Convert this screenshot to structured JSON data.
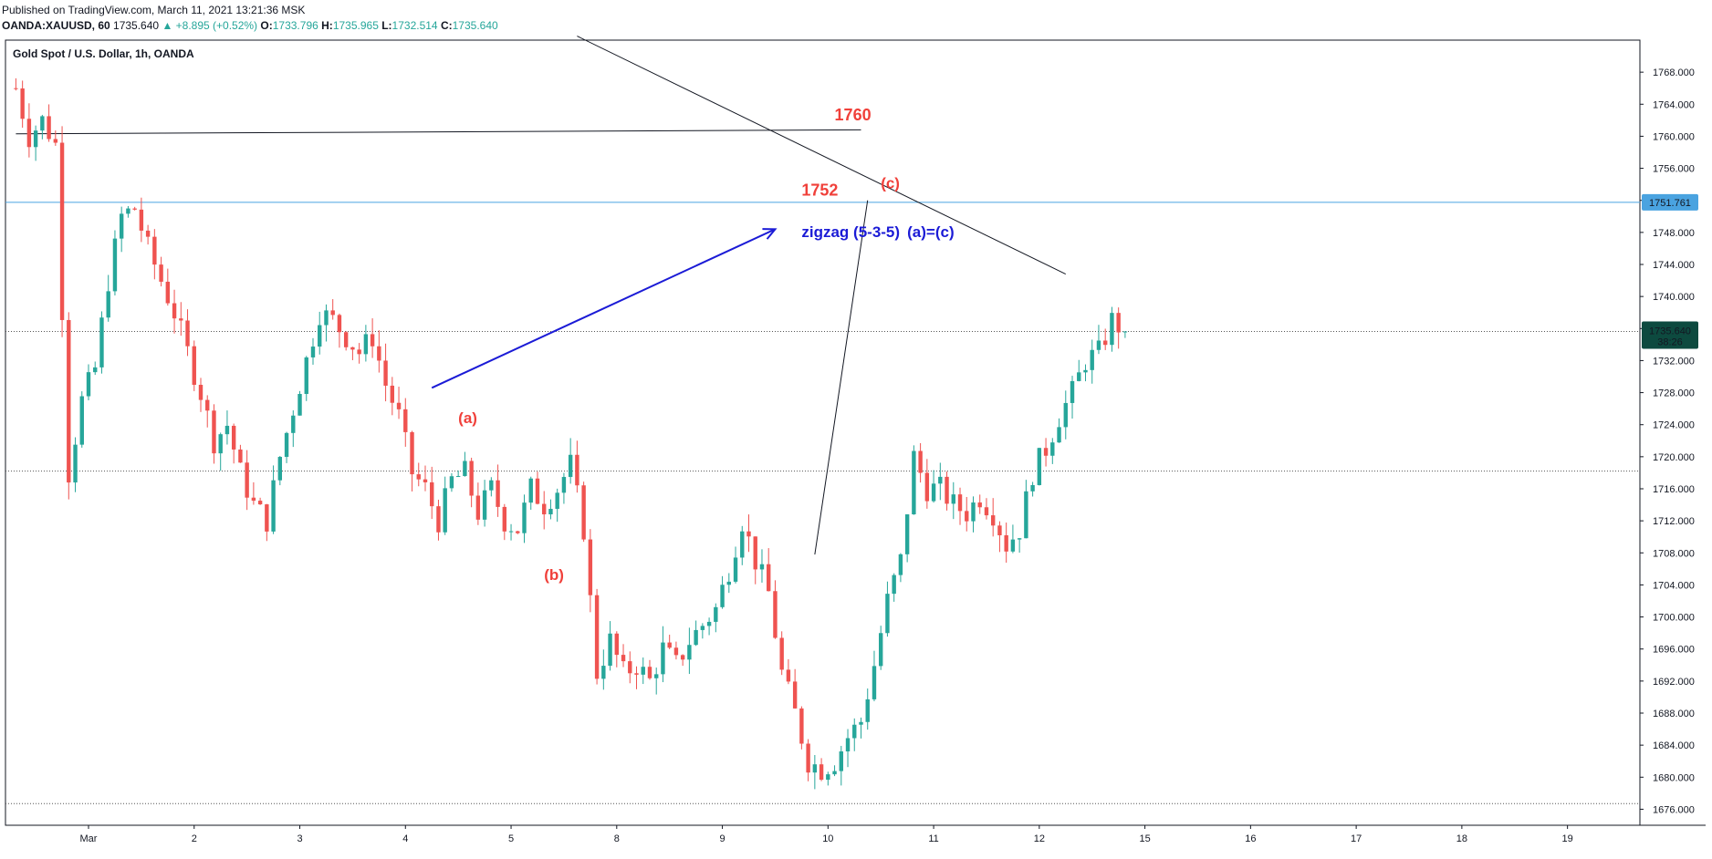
{
  "header": {
    "published": "Published on TradingView.com, March 11, 2021 13:21:36 MSK",
    "symbol": "OANDA:XAUUSD, 60",
    "last": "1735.640",
    "change": "▲ +8.895 (+0.52%)",
    "o_label": "O:",
    "o_value": "1733.796",
    "h_label": "H:",
    "h_value": "1735.965",
    "l_label": "L:",
    "l_value": "1732.514",
    "c_label": "C:",
    "c_value": "1735.640"
  },
  "legend": "Gold Spot / U.S. Dollar, 1h, OANDA",
  "colors": {
    "up": "#26a69a",
    "down": "#ef5350",
    "price_tag": "#0d4a3f",
    "level_line": "#4aa3e0",
    "annotation_red": "#f0403a",
    "annotation_blue": "#1b1bd6"
  },
  "chart_data": {
    "type": "candlestick",
    "symbol": "XAUUSD",
    "interval": "1h",
    "ylim": [
      1674,
      1772
    ],
    "y_ticks": [
      "1768.000",
      "1764.000",
      "1760.000",
      "1756.000",
      "1752.000",
      "1748.000",
      "1744.000",
      "1740.000",
      "1736.000",
      "1732.000",
      "1728.000",
      "1724.000",
      "1720.000",
      "1716.000",
      "1712.000",
      "1708.000",
      "1704.000",
      "1700.000",
      "1696.000",
      "1692.000",
      "1688.000",
      "1684.000",
      "1680.000",
      "1676.000"
    ],
    "x_ticks": [
      "Mar",
      "2",
      "3",
      "4",
      "5",
      "8",
      "9",
      "10",
      "11",
      "12",
      "15",
      "16",
      "17",
      "18",
      "19"
    ],
    "x_tick_pos": [
      0,
      16,
      32,
      48,
      64,
      80,
      96,
      112,
      128,
      144,
      160,
      176,
      192,
      208,
      224
    ],
    "bars_start_offset": -11,
    "bars_per_day": 16,
    "close_path": [
      1766,
      1760,
      1762,
      1759,
      1718,
      1727,
      1731,
      1742,
      1750,
      1751,
      1746,
      1742,
      1738,
      1733,
      1728,
      1722,
      1724,
      1718,
      1714,
      1712,
      1720,
      1726,
      1732,
      1738,
      1737,
      1735,
      1733,
      1735,
      1729,
      1725,
      1718,
      1716,
      1712,
      1717,
      1718,
      1713,
      1716,
      1712,
      1711,
      1716,
      1714,
      1716,
      1719,
      1711,
      1693,
      1697,
      1693,
      1694,
      1692,
      1696,
      1694,
      1697,
      1699,
      1701,
      1706,
      1712,
      1707,
      1703,
      1693,
      1688,
      1682,
      1681,
      1682,
      1685,
      1687,
      1694,
      1702,
      1707,
      1720,
      1716,
      1716,
      1714,
      1713,
      1715,
      1713,
      1709,
      1711,
      1718,
      1721,
      1725,
      1728,
      1732,
      1733,
      1737,
      1735.64
    ],
    "close_path_spacing": 2,
    "last_price": "1735.640",
    "price_tag_time": "38:26",
    "reference_lines": [
      {
        "label": "1751.761",
        "value": 1751.761,
        "style": "solid"
      },
      {
        "value": 1735.64,
        "style": "dotted"
      },
      {
        "value": 1718.2,
        "style": "dotted"
      },
      {
        "value": 1676.7,
        "style": "dotted"
      }
    ],
    "trendlines": [
      {
        "x1": 74,
        "y1": 1772.5,
        "x2": 148,
        "y2": 1742.8
      },
      {
        "x1": -11,
        "y1": 1760.3,
        "x2": 117,
        "y2": 1760.8
      },
      {
        "x1": 110,
        "y1": 1707.8,
        "x2": 118,
        "y2": 1752.0
      }
    ],
    "arrow": {
      "x1": 52,
      "y1": 1728.6,
      "x2": 104,
      "y2": 1748.4
    },
    "annotations": [
      {
        "text": "1760",
        "x": 113,
        "y": 1762
      },
      {
        "text": "1752",
        "x": 108,
        "y": 1752.6
      },
      {
        "text": "(c)",
        "x": 120,
        "y": 1753.5
      },
      {
        "text": "(a)",
        "x": 56,
        "y": 1724.2
      },
      {
        "text": "(b)",
        "x": 69,
        "y": 1704.6
      },
      {
        "text": "zigzag (5-3-5)",
        "x": 108,
        "y": 1747.4
      },
      {
        "text": "(a)=(c)",
        "x": 124,
        "y": 1747.4
      }
    ]
  }
}
